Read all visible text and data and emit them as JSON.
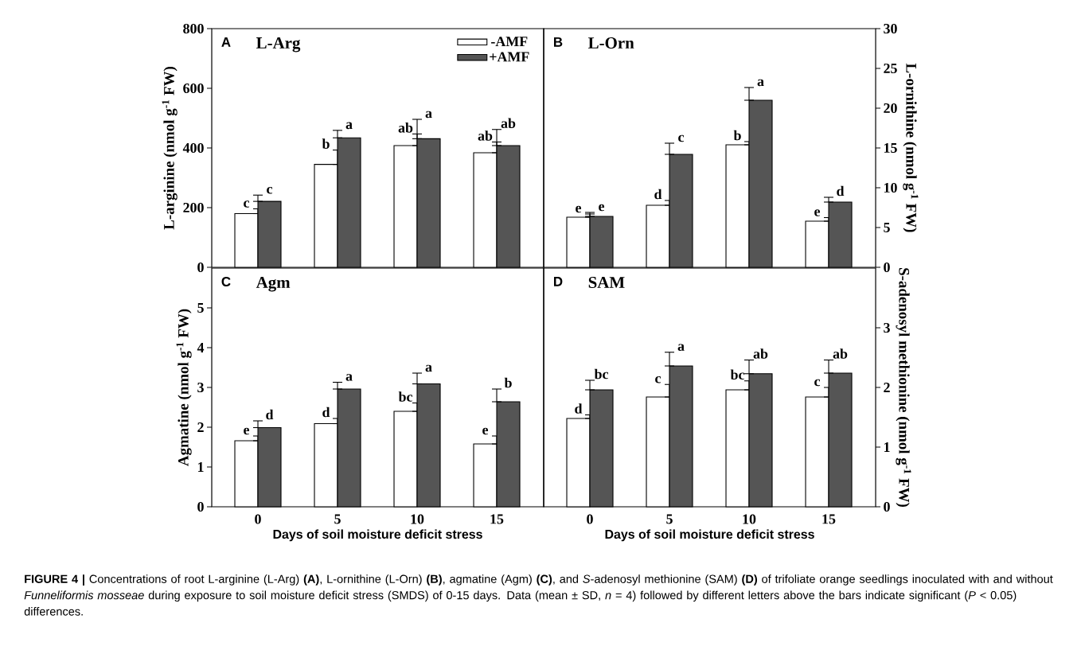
{
  "chart_data": [
    {
      "type": "bar",
      "title": "L-Arg",
      "ylabel": "L-arginine (nmol g$^{-1}$ FW)",
      "categories": [
        "0",
        "5",
        "10",
        "15"
      ],
      "tick_labels": "y",
      "legend": "top right",
      "series": [
        {
          "name": "-AMF",
          "color": "#ffffff",
          "values": [
            180,
            345,
            408,
            384
          ],
          "errors": [
            [
              180,
              196
            ],
            [
              345,
              393
            ],
            [
              408,
              447
            ],
            [
              384,
              420
            ]
          ]
        },
        {
          "name": "+AMF",
          "color": "#555555",
          "values": [
            221,
            434,
            431,
            408
          ],
          "errors": [
            [
              221,
              242
            ],
            [
              434,
              459
            ],
            [
              431,
              496
            ],
            [
              408,
              462
            ]
          ]
        }
      ],
      "ylim": [
        0,
        800
      ],
      "yticks": [
        0,
        200,
        400,
        600,
        800
      ],
      "annotations": [
        "A",
        "c",
        "c",
        "b",
        "a",
        "ab",
        "a",
        "ab",
        "ab"
      ]
    },
    {
      "type": "bar",
      "title": "L-Orn",
      "ylabel": "L-ornithine (nmol g$^{-1}$ FW)",
      "categories": [
        "0",
        "5",
        "10",
        "15"
      ],
      "tick_labels": "y",
      "series": [
        {
          "color": "#ffffff",
          "values": [
            6.3,
            7.8,
            15.4,
            5.8
          ],
          "errors": [
            [
              6.3,
              6.7
            ],
            [
              7.8,
              8.4
            ],
            [
              15.4,
              15.8
            ],
            [
              5.8,
              6.25
            ]
          ]
        },
        {
          "color": "#555555",
          "values": [
            6.4,
            14.2,
            21.0,
            8.2
          ],
          "errors": [
            [
              6.4,
              6.9
            ],
            [
              14.2,
              15.6
            ],
            [
              21.0,
              22.6
            ],
            [
              8.2,
              8.8
            ]
          ]
        }
      ],
      "ylim": [
        0,
        30
      ],
      "yticks": [
        0,
        5,
        10,
        15,
        20,
        25,
        30
      ],
      "annotations": [
        "B",
        "e",
        "e",
        "d",
        "c",
        "b",
        "a",
        "e",
        "d"
      ]
    },
    {
      "type": "bar",
      "title": "Agm",
      "ylabel": "Agmatine (nmol g$^{-1}$ FW)",
      "xlabel": "Days of soil moisture deficit stress",
      "categories": [
        "0",
        "5",
        "10",
        "15"
      ],
      "series": [
        {
          "color": "#ffffff",
          "values": [
            1.66,
            2.09,
            2.4,
            1.58
          ],
          "errors": [
            [
              1.66,
              1.78
            ],
            [
              2.09,
              2.22
            ],
            [
              2.4,
              2.61
            ],
            [
              1.58,
              1.78
            ]
          ]
        },
        {
          "color": "#555555",
          "values": [
            1.99,
            2.96,
            3.09,
            2.64
          ],
          "errors": [
            [
              1.99,
              2.16
            ],
            [
              2.96,
              3.13
            ],
            [
              3.09,
              3.36
            ],
            [
              2.64,
              2.96
            ]
          ]
        }
      ],
      "ylim": [
        0,
        6
      ],
      "yticks": [
        0,
        1,
        2,
        3,
        4,
        5
      ],
      "annotations": [
        "C",
        "e",
        "d",
        "d",
        "a",
        "bc",
        "a",
        "e",
        "b"
      ]
    },
    {
      "type": "bar",
      "title": "SAM",
      "ylabel": "S-adenosyl methionine (nmol g$^{-1}$ FW)",
      "xlabel": "Days of soil moisture deficit stress",
      "categories": [
        "0",
        "5",
        "10",
        "15"
      ],
      "series": [
        {
          "color": "#ffffff",
          "values": [
            1.48,
            1.84,
            1.96,
            1.84
          ],
          "errors": [
            [
              1.48,
              1.54
            ],
            [
              1.84,
              2.05
            ],
            [
              1.96,
              2.11
            ],
            [
              1.84,
              2.0
            ]
          ]
        },
        {
          "color": "#555555",
          "values": [
            1.96,
            2.36,
            2.23,
            2.24
          ],
          "errors": [
            [
              1.96,
              2.12
            ],
            [
              2.36,
              2.59
            ],
            [
              2.23,
              2.46
            ],
            [
              2.24,
              2.46
            ]
          ]
        }
      ],
      "ylim": [
        0,
        4
      ],
      "yticks": [
        0,
        1,
        2,
        3
      ],
      "annotations": [
        "D",
        "d",
        "bc",
        "c",
        "a",
        "bc",
        "ab",
        "c",
        "ab",
        "**FIGURE 4 |** Concentrations of root L-arginine (L-Arg) **(A)**, L-ornithine (L-Orn) **(B)**, agmatine (Agm) **(C)**, and *S*-adenosyl methionine (SAM) **(D)** of trifoliate orange seedlings inoculated with and without *Funneliformis mosseae* during exposure to soil moisture deficit stress (SMDS) of 0-15 days. Data (mean ± SD, *n* = 4) followed by different letters above the bars indicate significant (*P* < 0.05) differences."
      ]
    }
  ]
}
